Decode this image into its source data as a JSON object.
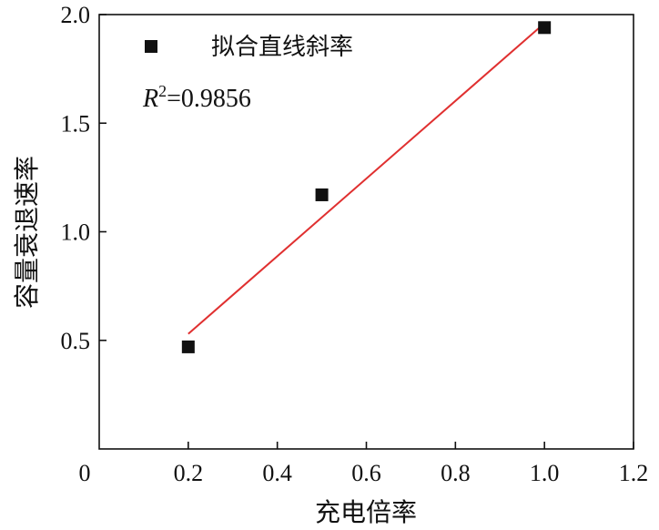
{
  "chart_data": {
    "type": "scatter",
    "xlabel": "充电倍率",
    "ylabel": "容量衰退速率",
    "xlim": [
      0,
      1.2
    ],
    "ylim": [
      0,
      2.0
    ],
    "x_ticks": [
      0,
      0.2,
      0.4,
      0.6,
      0.8,
      1.0,
      1.2
    ],
    "x_tick_labels": [
      "0",
      "0.2",
      "0.4",
      "0.6",
      "0.8",
      "1.0",
      "1.2"
    ],
    "y_ticks": [
      0.5,
      1.0,
      1.5,
      2.0
    ],
    "y_tick_labels": [
      "0.5",
      "1.0",
      "1.5",
      "2.0"
    ],
    "points": [
      {
        "x": 0.2,
        "y": 0.47
      },
      {
        "x": 0.5,
        "y": 1.17
      },
      {
        "x": 1.0,
        "y": 1.94
      }
    ],
    "fit_line": {
      "x": [
        0.2,
        1.0
      ],
      "y": [
        0.53,
        1.96
      ],
      "color": "#e03030"
    },
    "legend": {
      "label": "拟合直线斜率",
      "position": "top-left"
    },
    "annotation": {
      "var": "R",
      "exp": "2",
      "rest": "=0.9856"
    },
    "marker_color": "#111111",
    "grid": false
  }
}
